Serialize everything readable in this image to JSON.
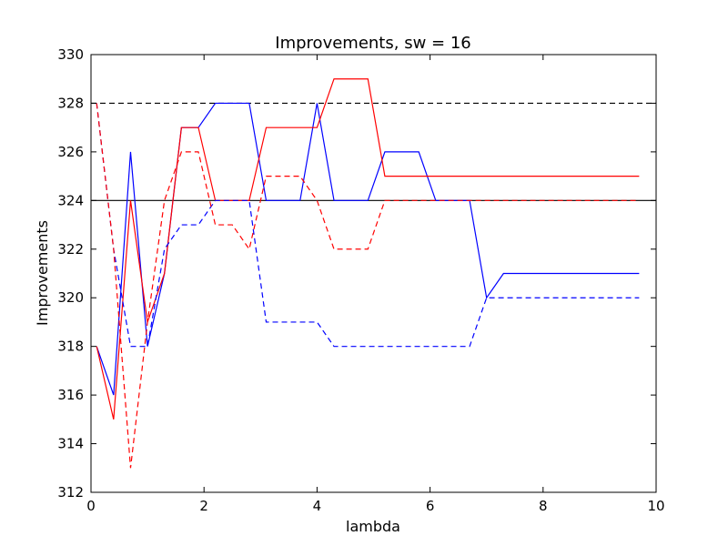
{
  "chart_data": {
    "type": "line",
    "title": "Improvements, sw = 16",
    "xlabel": "lambda",
    "ylabel": "Improvements",
    "xlim": [
      0,
      10
    ],
    "ylim": [
      312,
      330
    ],
    "xticks": [
      0,
      2,
      4,
      6,
      8,
      10
    ],
    "yticks": [
      312,
      314,
      316,
      318,
      320,
      322,
      324,
      326,
      328,
      330
    ],
    "grid": false,
    "x": [
      0.1,
      0.4,
      0.7,
      1.0,
      1.3,
      1.6,
      1.9,
      2.2,
      2.5,
      2.8,
      3.1,
      3.4,
      3.7,
      4.0,
      4.3,
      4.6,
      4.9,
      5.2,
      5.5,
      5.8,
      6.1,
      6.4,
      6.7,
      7.0,
      7.3,
      7.6,
      7.9,
      8.2,
      8.5,
      8.8,
      9.1,
      9.4,
      9.7
    ],
    "series": [
      {
        "color": "#0000ff",
        "dash": "solid",
        "values": [
          318,
          316,
          326,
          318,
          321,
          327,
          327,
          328,
          328,
          328,
          324,
          324,
          324,
          328,
          324,
          324,
          324,
          326,
          326,
          326,
          324,
          324,
          324,
          320,
          321,
          321,
          321,
          321,
          321,
          321,
          321,
          321,
          321
        ]
      },
      {
        "color": "#ff0000",
        "dash": "solid",
        "values": [
          318,
          315,
          324,
          319,
          321,
          327,
          327,
          324,
          324,
          324,
          327,
          327,
          327,
          327,
          329,
          329,
          329,
          325,
          325,
          325,
          325,
          325,
          325,
          325,
          325,
          325,
          325,
          325,
          325,
          325,
          325,
          325,
          325
        ]
      },
      {
        "color": "#0000ff",
        "dash": "dashed",
        "values": [
          328,
          322,
          318,
          318,
          322,
          323,
          323,
          324,
          324,
          324,
          319,
          319,
          319,
          319,
          318,
          318,
          318,
          318,
          318,
          318,
          318,
          318,
          318,
          320,
          320,
          320,
          320,
          320,
          320,
          320,
          320,
          320,
          320
        ]
      },
      {
        "color": "#ff0000",
        "dash": "dashed",
        "values": [
          328,
          322,
          313,
          319,
          324,
          326,
          326,
          323,
          323,
          322,
          325,
          325,
          325,
          324,
          322,
          322,
          322,
          324,
          324,
          324,
          324,
          324,
          324,
          324,
          324,
          324,
          324,
          324,
          324,
          324,
          324,
          324,
          324
        ]
      }
    ],
    "reference_lines": [
      {
        "y": 328,
        "color": "#000000",
        "dash": "dashed"
      },
      {
        "y": 324,
        "color": "#000000",
        "dash": "solid"
      }
    ]
  }
}
